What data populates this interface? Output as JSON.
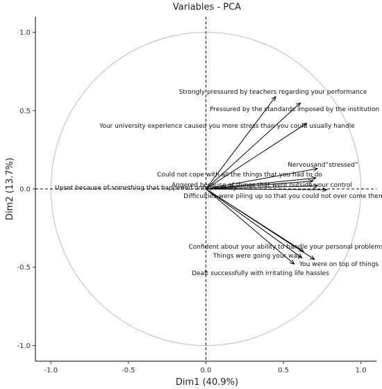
{
  "chart_data": {
    "type": "scatter",
    "title": "Variables - PCA",
    "xlabel": "Dim1 (40.9%)",
    "ylabel": "Dim2 (13.7%)",
    "xlim": [
      -1.1,
      1.1
    ],
    "ylim": [
      -1.1,
      1.1
    ],
    "xticks": [
      "-1.0",
      "-0.5",
      "0.0",
      "0.5",
      "1.0"
    ],
    "yticks": [
      "-1.0",
      "-0.5",
      "0.0",
      "0.5",
      "1.0"
    ],
    "grid": false,
    "variables": [
      {
        "name": "Strongly pressured by teachers regarding your performance",
        "x": 0.45,
        "y": 0.59
      },
      {
        "name": "Pressured by the standards imposed by the institution",
        "x": 0.61,
        "y": 0.55
      },
      {
        "name": "Your university experience caused you more stress than you could usually handle",
        "x": 0.65,
        "y": 0.42
      },
      {
        "name": "Nervousand“stressed”",
        "x": 0.72,
        "y": 0.13
      },
      {
        "name": "Could not cope with all the things that you had to do",
        "x": 0.71,
        "y": 0.07
      },
      {
        "name": "Angered because of things that were outside your control",
        "x": 0.69,
        "y": 0.05
      },
      {
        "name": "Upset because of something that happened unexpectedly",
        "x": 0.72,
        "y": 0.02
      },
      {
        "name": "Difficulties were piling up so that you could not over come them",
        "x": 0.78,
        "y": -0.005
      },
      {
        "name": "Confident about your ability to handle your personal problems",
        "x": 0.63,
        "y": -0.4
      },
      {
        "name": "Things were going your way",
        "x": 0.62,
        "y": -0.44
      },
      {
        "name": "You were on top of things",
        "x": 0.7,
        "y": -0.45
      },
      {
        "name": "Dealt successfully with irritating life hassles",
        "x": 0.57,
        "y": -0.48
      }
    ]
  }
}
